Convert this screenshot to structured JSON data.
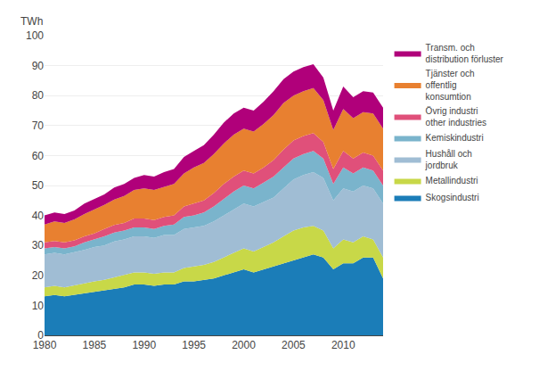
{
  "chart_data": {
    "type": "area",
    "stacked": true,
    "ylabel": "TWh",
    "x": [
      1980,
      1981,
      1982,
      1983,
      1984,
      1985,
      1986,
      1987,
      1988,
      1989,
      1990,
      1991,
      1992,
      1993,
      1994,
      1995,
      1996,
      1997,
      1998,
      1999,
      2000,
      2001,
      2002,
      2003,
      2004,
      2005,
      2006,
      2007,
      2008,
      2009,
      2010,
      2011,
      2012,
      2013,
      2014
    ],
    "series": [
      {
        "name": "Skogsindustri",
        "color": "#1b7db8",
        "values": [
          13,
          13.5,
          13,
          13.5,
          14,
          14.5,
          15,
          15.5,
          16,
          17,
          17,
          16.5,
          17,
          17,
          18,
          18,
          18.5,
          19,
          20,
          21,
          22,
          21,
          22,
          23,
          24,
          25,
          26,
          27,
          26,
          22,
          24,
          24,
          26,
          26,
          19
        ]
      },
      {
        "name": "Metallindustri",
        "color": "#c8d848",
        "values": [
          3,
          3.0,
          3,
          3.2,
          3.5,
          3.5,
          3.5,
          3.8,
          4,
          4,
          4,
          4,
          4,
          4,
          4.5,
          5,
          5,
          5.5,
          6,
          6.5,
          7,
          7,
          7.5,
          8,
          9,
          10,
          10,
          9.5,
          9,
          7,
          8,
          7,
          7,
          6,
          7
        ]
      },
      {
        "name": "Hushåll och\njordbruk",
        "color": "#a0bdd4",
        "values": [
          11,
          11,
          11,
          11,
          11,
          11.5,
          11.5,
          12,
          12,
          12,
          12,
          12,
          12.5,
          12.5,
          13,
          13,
          13,
          13.5,
          14,
          14.5,
          15,
          15,
          15,
          15,
          16,
          17,
          17.5,
          18,
          17.5,
          16,
          17,
          17,
          17,
          17,
          18
        ]
      },
      {
        "name": "Kemiskindustri",
        "color": "#7ab4cc",
        "values": [
          2,
          2,
          2,
          2,
          2.5,
          2.5,
          3,
          3,
          3,
          3,
          3,
          3,
          3,
          3.5,
          4,
          4,
          4.5,
          5,
          5.5,
          6,
          6,
          6,
          6.5,
          7,
          7,
          7,
          7,
          7,
          6.5,
          5.5,
          7,
          6,
          6,
          6,
          6
        ]
      },
      {
        "name": "Övrig industri\nother industries",
        "color": "#e0507a",
        "values": [
          2,
          2,
          2,
          2,
          2,
          2,
          2.5,
          2.5,
          2.5,
          3,
          3,
          3,
          3,
          3,
          3.5,
          4,
          4,
          4.5,
          5,
          5,
          5,
          5,
          5,
          5.5,
          6,
          6,
          6,
          6,
          5.5,
          5,
          5.5,
          5,
          5,
          5,
          5
        ]
      },
      {
        "name": "Tjänster och\noffentlig\nkonsumtion",
        "color": "#e88030",
        "values": [
          6,
          6.5,
          6.5,
          7,
          7.5,
          8,
          8,
          8.5,
          9,
          9.5,
          10,
          10,
          10,
          10.5,
          11,
          12,
          12.5,
          13,
          13.5,
          14,
          14,
          14,
          14.5,
          15,
          15.5,
          15,
          15,
          15,
          14,
          13,
          14,
          13.5,
          13.5,
          14,
          14
        ]
      },
      {
        "name": "Transm. och\ndistribution förluster",
        "color": "#b0007a",
        "values": [
          3,
          3,
          3,
          3,
          3.5,
          3.5,
          3.5,
          4,
          4,
          4,
          4.5,
          4.5,
          5,
          5,
          5.5,
          5.5,
          6,
          6.5,
          7,
          7,
          7,
          7,
          7.5,
          8,
          8,
          8,
          8,
          8,
          7.5,
          6.5,
          7.5,
          7,
          7,
          7,
          7
        ]
      }
    ],
    "xlim": [
      1980,
      2014
    ],
    "xticks": [
      1980,
      1985,
      1990,
      1995,
      2000,
      2005,
      2010
    ],
    "ylim": [
      0,
      100
    ],
    "yticks": [
      0,
      10,
      20,
      30,
      40,
      50,
      60,
      70,
      80,
      90,
      100
    ],
    "grid": "y",
    "legend": "right"
  }
}
